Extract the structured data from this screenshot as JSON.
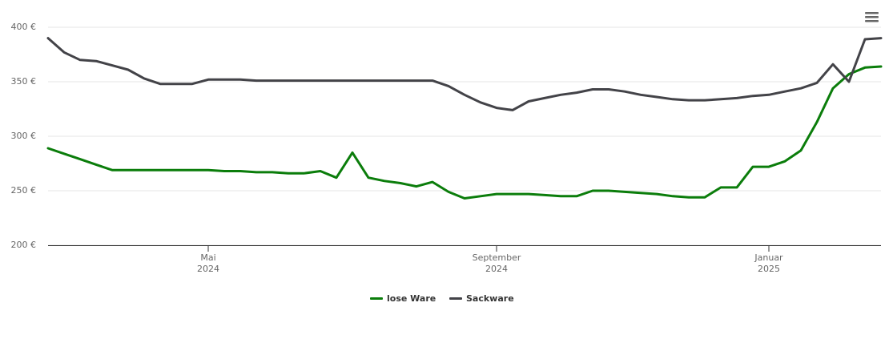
{
  "chart_data": {
    "type": "line",
    "categories": [
      null,
      null,
      null,
      null,
      null,
      null,
      null,
      null,
      null,
      null,
      "Mai\n2024",
      null,
      null,
      null,
      null,
      null,
      null,
      null,
      null,
      null,
      null,
      null,
      null,
      null,
      null,
      null,
      null,
      null,
      "September\n2024",
      null,
      null,
      null,
      null,
      null,
      null,
      null,
      null,
      null,
      null,
      null,
      null,
      null,
      null,
      null,
      null,
      "Januar\n2025",
      null,
      null,
      null,
      null,
      null,
      null,
      null
    ],
    "series": [
      {
        "name": "lose Ware",
        "color": "#0b7d0b",
        "values": [
          289,
          284,
          279,
          274,
          269,
          269,
          269,
          269,
          269,
          269,
          269,
          268,
          268,
          267,
          267,
          266,
          266,
          268,
          262,
          285,
          262,
          259,
          257,
          254,
          258,
          249,
          243,
          245,
          247,
          247,
          247,
          246,
          245,
          245,
          250,
          250,
          249,
          248,
          247,
          245,
          244,
          244,
          253,
          253,
          272,
          272,
          277,
          287,
          313,
          344,
          357,
          363,
          364
        ]
      },
      {
        "name": "Sackware",
        "color": "#434348",
        "values": [
          390,
          377,
          370,
          369,
          365,
          361,
          353,
          348,
          348,
          348,
          352,
          352,
          352,
          351,
          351,
          351,
          351,
          351,
          351,
          351,
          351,
          351,
          351,
          351,
          351,
          346,
          338,
          331,
          326,
          324,
          332,
          335,
          338,
          340,
          343,
          343,
          341,
          338,
          336,
          334,
          333,
          333,
          334,
          335,
          337,
          338,
          341,
          344,
          349,
          366,
          350,
          389,
          390
        ]
      }
    ],
    "ylim": [
      200,
      400
    ],
    "yticks": [
      {
        "value": 200,
        "label": "200 €"
      },
      {
        "value": 250,
        "label": "250 €"
      },
      {
        "value": 300,
        "label": "300 €"
      },
      {
        "value": 350,
        "label": "350 €"
      },
      {
        "value": 400,
        "label": "400 €"
      }
    ],
    "grid": true
  }
}
